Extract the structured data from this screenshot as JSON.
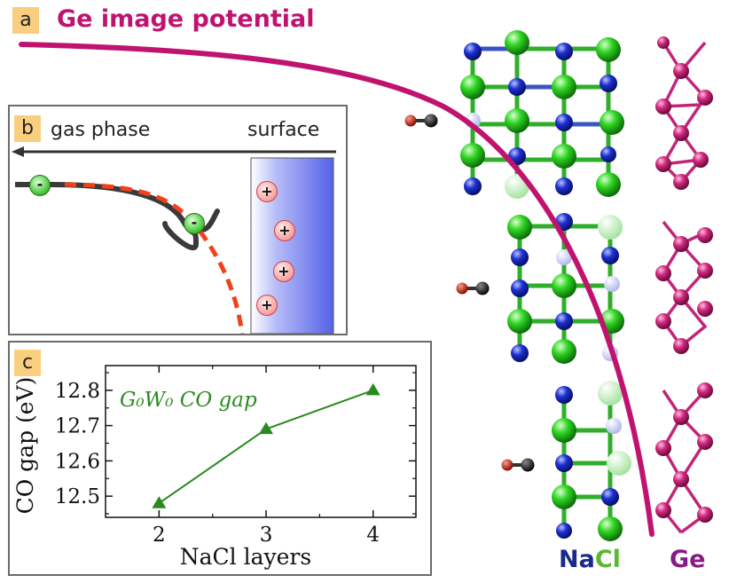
{
  "panel_a": {
    "letter": "a",
    "title": "Ge image potential"
  },
  "panel_b": {
    "letter": "b",
    "left_label": "gas phase",
    "right_label": "surface",
    "electron_sign": "-",
    "image_charge_sign": "+"
  },
  "panel_c": {
    "letter": "c"
  },
  "legend": {
    "nacl_na": "Na",
    "nacl_cl": "Cl",
    "ge": "Ge"
  },
  "colors": {
    "magenta": "#c0136f",
    "na_blue": "#1a2fc9",
    "cl_green": "#22c51c",
    "ge_pink": "#c2247a",
    "chart_green": "#2a8a1e"
  },
  "chart_data": {
    "type": "line",
    "x": [
      2,
      3,
      4
    ],
    "series": [
      {
        "name": "G₀W₀ CO gap",
        "values": [
          12.48,
          12.69,
          12.8
        ]
      }
    ],
    "xlabel": "NaCl layers",
    "ylabel": "CO gap (eV)",
    "xlim": [
      1.5,
      4.4
    ],
    "ylim": [
      12.44,
      12.87
    ],
    "xticks": [
      2,
      3,
      4
    ],
    "yticks": [
      12.5,
      12.6,
      12.7,
      12.8
    ],
    "ytick_labels": [
      "12.5",
      "12.6",
      "12.7",
      "12.8"
    ],
    "xtick_labels": [
      "2",
      "3",
      "4"
    ],
    "grid": false,
    "legend": "inline, top-left"
  }
}
